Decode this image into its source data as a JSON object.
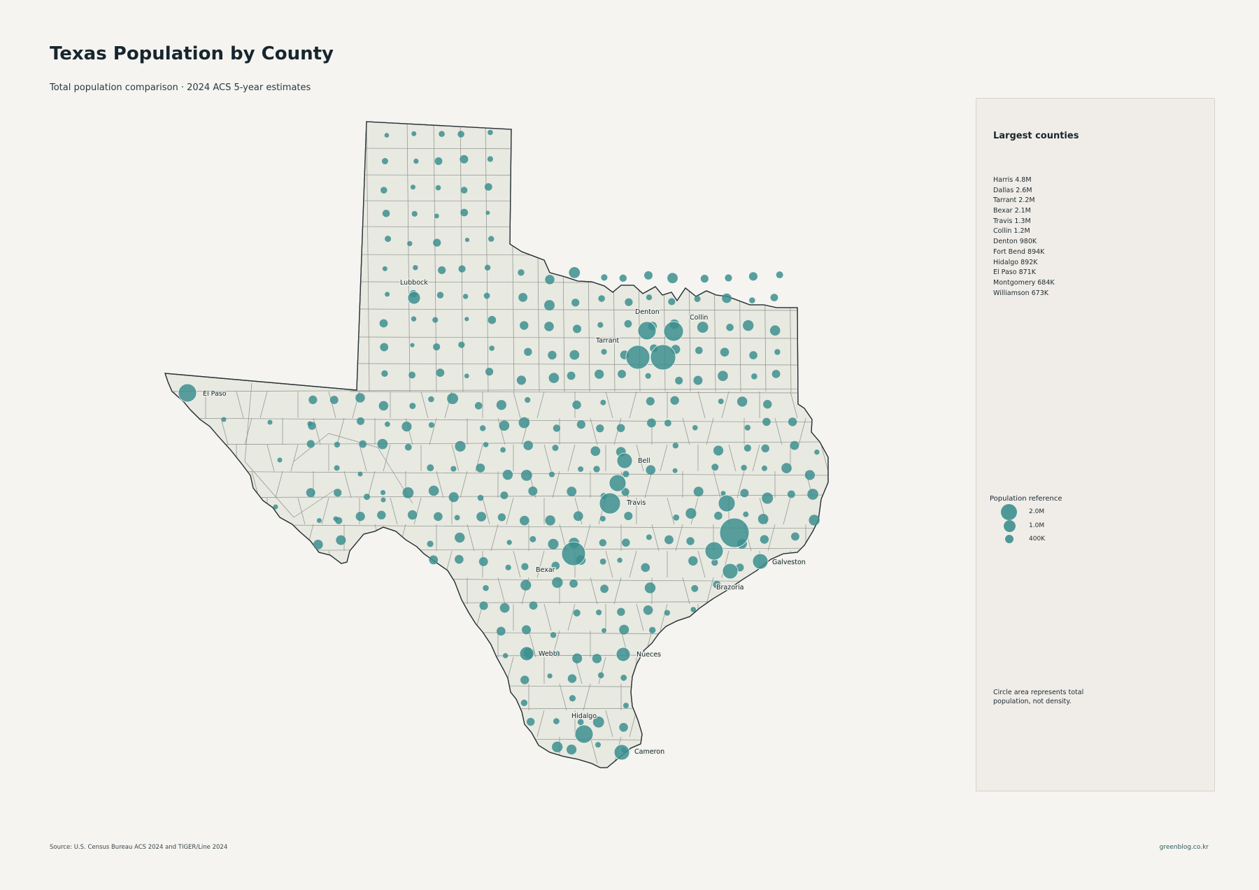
{
  "title": "Texas Population by County",
  "subtitle": "Total population comparison · 2024 ACS 5-year estimates",
  "panel": {
    "heading": "Largest counties",
    "counties": [
      "Harris  4.8M",
      "Dallas  2.6M",
      "Tarrant  2.2M",
      "Bexar  2.1M",
      "Travis  1.3M",
      "Collin  1.2M",
      "Denton  980K",
      "Fort Bend  894K",
      "Hidalgo  892K",
      "El Paso  871K",
      "Montgomery  684K",
      "Williamson  673K"
    ],
    "legend": {
      "title": "Population reference",
      "items": [
        {
          "label": "2.0M",
          "population": 2000000
        },
        {
          "label": "1.0M",
          "population": 1000000
        },
        {
          "label": "400K",
          "population": 400000
        }
      ]
    },
    "note": "Circle area represents total population, not density."
  },
  "map_labels": [
    "Lubbock",
    "Denton",
    "Collin",
    "Tarrant",
    "El Paso",
    "Bell",
    "Travis",
    "Bexar",
    "Galveston",
    "Brazoria",
    "Webb",
    "Nueces",
    "Hidalgo",
    "Cameron"
  ],
  "colors": {
    "bubble": "#3c8f8f",
    "land": "#e8e9e1",
    "background": "#f5f4f0",
    "panel": "#f0ede8"
  },
  "source": "Source: U.S. Census Bureau ACS 2024 and TIGER/Line 2024",
  "credit": "greenblog.co.kr"
}
